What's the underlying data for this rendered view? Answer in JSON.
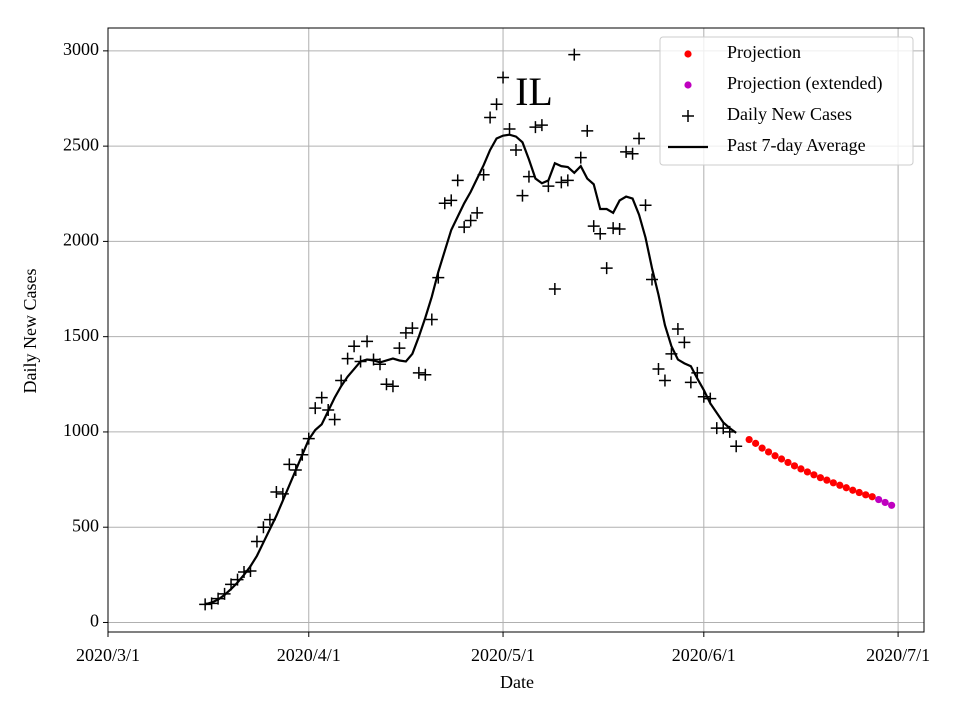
{
  "chart_data": {
    "type": "line",
    "annotation": "IL",
    "x_label": "Date",
    "y_label": "Daily New Cases",
    "xlim": [
      "2020/3/1",
      "2020/7/5"
    ],
    "xticks": [
      "2020/3/1",
      "2020/4/1",
      "2020/5/1",
      "2020/6/1",
      "2020/7/1"
    ],
    "ylim": [
      -50,
      3120
    ],
    "yticks": [
      0,
      500,
      1000,
      1500,
      2000,
      2500,
      3000
    ],
    "grid": true,
    "legend": "upper right",
    "series": [
      {
        "name": "Projection",
        "color": "#ff0000",
        "style": "dot",
        "x": [
          "2020/6/8",
          "2020/6/9",
          "2020/6/10",
          "2020/6/11",
          "2020/6/12",
          "2020/6/13",
          "2020/6/14",
          "2020/6/15",
          "2020/6/16",
          "2020/6/17",
          "2020/6/18",
          "2020/6/19",
          "2020/6/20",
          "2020/6/21",
          "2020/6/22",
          "2020/6/23",
          "2020/6/24",
          "2020/6/25",
          "2020/6/26",
          "2020/6/27"
        ],
        "values": [
          960,
          940,
          915,
          895,
          875,
          858,
          840,
          822,
          806,
          790,
          775,
          760,
          747,
          733,
          720,
          707,
          694,
          682,
          670,
          660
        ]
      },
      {
        "name": "Projection (extended)",
        "color": "#bf00bf",
        "style": "dot",
        "x": [
          "2020/6/28",
          "2020/6/29",
          "2020/6/30"
        ],
        "values": [
          645,
          630,
          615
        ]
      },
      {
        "name": "Daily New Cases",
        "color": "#000000",
        "style": "plus",
        "x": [
          "2020/3/16",
          "2020/3/17",
          "2020/3/18",
          "2020/3/19",
          "2020/3/20",
          "2020/3/21",
          "2020/3/22",
          "2020/3/23",
          "2020/3/24",
          "2020/3/25",
          "2020/3/26",
          "2020/3/27",
          "2020/3/28",
          "2020/3/29",
          "2020/3/30",
          "2020/3/31",
          "2020/4/1",
          "2020/4/2",
          "2020/4/3",
          "2020/4/4",
          "2020/4/5",
          "2020/4/6",
          "2020/4/7",
          "2020/4/8",
          "2020/4/9",
          "2020/4/10",
          "2020/4/11",
          "2020/4/12",
          "2020/4/13",
          "2020/4/14",
          "2020/4/15",
          "2020/4/16",
          "2020/4/17",
          "2020/4/18",
          "2020/4/19",
          "2020/4/20",
          "2020/4/21",
          "2020/4/22",
          "2020/4/23",
          "2020/4/24",
          "2020/4/25",
          "2020/4/26",
          "2020/4/27",
          "2020/4/28",
          "2020/4/29",
          "2020/4/30",
          "2020/5/1",
          "2020/5/2",
          "2020/5/3",
          "2020/5/4",
          "2020/5/5",
          "2020/5/6",
          "2020/5/7",
          "2020/5/8",
          "2020/5/9",
          "2020/5/10",
          "2020/5/11",
          "2020/5/12",
          "2020/5/13",
          "2020/5/14",
          "2020/5/15",
          "2020/5/16",
          "2020/5/17",
          "2020/5/18",
          "2020/5/19",
          "2020/5/20",
          "2020/5/21",
          "2020/5/22",
          "2020/5/23",
          "2020/5/24",
          "2020/5/25",
          "2020/5/26",
          "2020/5/27",
          "2020/5/28",
          "2020/5/29",
          "2020/5/30",
          "2020/5/31",
          "2020/6/1",
          "2020/6/2",
          "2020/6/3",
          "2020/6/4",
          "2020/6/5",
          "2020/6/6"
        ],
        "values": [
          95,
          100,
          125,
          150,
          200,
          225,
          265,
          270,
          425,
          500,
          540,
          685,
          675,
          830,
          800,
          880,
          965,
          1125,
          1180,
          1115,
          1065,
          1270,
          1385,
          1450,
          1370,
          1475,
          1380,
          1355,
          1250,
          1240,
          1440,
          1520,
          1545,
          1310,
          1300,
          1590,
          1810,
          2200,
          2215,
          2320,
          2075,
          2110,
          2150,
          2350,
          2650,
          2720,
          2860,
          2590,
          2480,
          2240,
          2340,
          2600,
          2610,
          2290,
          1750,
          2310,
          2320,
          2980,
          2440,
          2580,
          2080,
          2040,
          1860,
          2070,
          2065,
          2470,
          2460,
          2540,
          2190,
          1800,
          1330,
          1270,
          1410,
          1540,
          1470,
          1260,
          1310,
          1185,
          1175,
          1020,
          1020,
          1000,
          925
        ]
      },
      {
        "name": "Past 7-day Average",
        "color": "#000000",
        "style": "line",
        "x": [
          "2020/3/16",
          "2020/3/17",
          "2020/3/18",
          "2020/3/19",
          "2020/3/20",
          "2020/3/21",
          "2020/3/22",
          "2020/3/23",
          "2020/3/24",
          "2020/3/25",
          "2020/3/26",
          "2020/3/27",
          "2020/3/28",
          "2020/3/29",
          "2020/3/30",
          "2020/3/31",
          "2020/4/1",
          "2020/4/2",
          "2020/4/3",
          "2020/4/4",
          "2020/4/5",
          "2020/4/6",
          "2020/4/7",
          "2020/4/8",
          "2020/4/9",
          "2020/4/10",
          "2020/4/11",
          "2020/4/12",
          "2020/4/13",
          "2020/4/14",
          "2020/4/15",
          "2020/4/16",
          "2020/4/17",
          "2020/4/18",
          "2020/4/19",
          "2020/4/20",
          "2020/4/21",
          "2020/4/22",
          "2020/4/23",
          "2020/4/24",
          "2020/4/25",
          "2020/4/26",
          "2020/4/27",
          "2020/4/28",
          "2020/4/29",
          "2020/4/30",
          "2020/5/1",
          "2020/5/2",
          "2020/5/3",
          "2020/5/4",
          "2020/5/5",
          "2020/5/6",
          "2020/5/7",
          "2020/5/8",
          "2020/5/9",
          "2020/5/10",
          "2020/5/11",
          "2020/5/12",
          "2020/5/13",
          "2020/5/14",
          "2020/5/15",
          "2020/5/16",
          "2020/5/17",
          "2020/5/18",
          "2020/5/19",
          "2020/5/20",
          "2020/5/21",
          "2020/5/22",
          "2020/5/23",
          "2020/5/24",
          "2020/5/25",
          "2020/5/26",
          "2020/5/27",
          "2020/5/28",
          "2020/5/29",
          "2020/5/30",
          "2020/5/31",
          "2020/6/1",
          "2020/6/2",
          "2020/6/3",
          "2020/6/4",
          "2020/6/5",
          "2020/6/6"
        ],
        "values": [
          95,
          105,
          120,
          145,
          175,
          210,
          250,
          295,
          350,
          420,
          490,
          560,
          640,
          720,
          800,
          880,
          960,
          1010,
          1040,
          1110,
          1180,
          1240,
          1290,
          1330,
          1370,
          1380,
          1375,
          1365,
          1375,
          1385,
          1375,
          1370,
          1410,
          1500,
          1600,
          1710,
          1840,
          1950,
          2060,
          2130,
          2200,
          2260,
          2330,
          2400,
          2480,
          2540,
          2555,
          2560,
          2550,
          2520,
          2430,
          2330,
          2305,
          2320,
          2410,
          2395,
          2390,
          2360,
          2395,
          2330,
          2300,
          2170,
          2170,
          2150,
          2215,
          2235,
          2225,
          2140,
          2020,
          1860,
          1720,
          1560,
          1450,
          1380,
          1360,
          1345,
          1280,
          1220,
          1150,
          1100,
          1050,
          1020,
          995
        ]
      }
    ]
  }
}
